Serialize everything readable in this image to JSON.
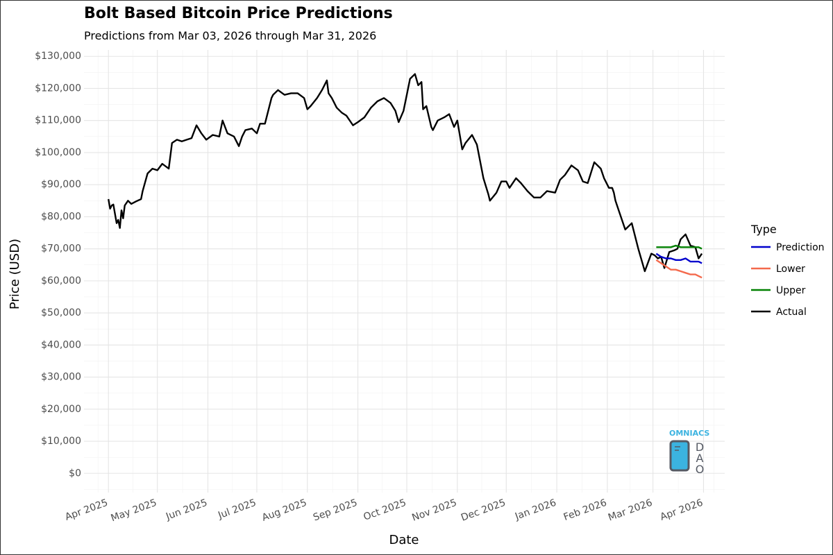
{
  "page": {
    "title": "Bolt Based Bitcoin Price Predictions",
    "subtitle": "Predictions from Mar 03, 2026 through Mar 31, 2026"
  },
  "logo": {
    "text": "OMNIACS",
    "side_text": "DAO"
  },
  "colors": {
    "Prediction": "#0000cd",
    "Lower": "#f4694c",
    "Upper": "#008000",
    "Actual": "#000000",
    "grid": "#e5e5e5"
  },
  "chart_data": {
    "type": "line",
    "title": "Bolt Based Bitcoin Price Predictions",
    "subtitle": "Predictions from Mar 03, 2026 through Mar 31, 2026",
    "xlabel": "Date",
    "ylabel": "Price (USD)",
    "xlim": [
      "2025-03-17",
      "2026-04-14"
    ],
    "ylim": [
      -6000,
      132000
    ],
    "y_ticks": [
      0,
      10000,
      20000,
      30000,
      40000,
      50000,
      60000,
      70000,
      80000,
      90000,
      100000,
      110000,
      120000,
      130000
    ],
    "y_tick_labels": [
      "$0",
      "$10,000",
      "$20,000",
      "$30,000",
      "$40,000",
      "$50,000",
      "$60,000",
      "$70,000",
      "$80,000",
      "$90,000",
      "$100,000",
      "$110,000",
      "$120,000",
      "$130,000"
    ],
    "x_ticks": [
      "2025-04-01",
      "2025-05-01",
      "2025-06-01",
      "2025-07-01",
      "2025-08-01",
      "2025-09-01",
      "2025-10-01",
      "2025-11-01",
      "2025-12-01",
      "2026-01-01",
      "2026-02-01",
      "2026-03-01",
      "2026-04-01"
    ],
    "x_tick_labels": [
      "Apr 2025",
      "May 2025",
      "Jun 2025",
      "Jul 2025",
      "Aug 2025",
      "Sep 2025",
      "Oct 2025",
      "Nov 2025",
      "Dec 2025",
      "Jan 2026",
      "Feb 2026",
      "Mar 2026",
      "Apr 2026"
    ],
    "grid": true,
    "legend": {
      "title": "Type",
      "position": "right",
      "entries": [
        "Prediction",
        "Lower",
        "Upper",
        "Actual"
      ]
    },
    "series": [
      {
        "name": "Actual",
        "x": [
          "2025-04-01",
          "2025-04-02",
          "2025-04-03",
          "2025-04-04",
          "2025-04-06",
          "2025-04-07",
          "2025-04-08",
          "2025-04-09",
          "2025-04-10",
          "2025-04-11",
          "2025-04-13",
          "2025-04-15",
          "2025-04-18",
          "2025-04-21",
          "2025-04-22",
          "2025-04-25",
          "2025-04-28",
          "2025-05-01",
          "2025-05-04",
          "2025-05-08",
          "2025-05-10",
          "2025-05-13",
          "2025-05-16",
          "2025-05-19",
          "2025-05-22",
          "2025-05-25",
          "2025-05-28",
          "2025-05-31",
          "2025-06-04",
          "2025-06-08",
          "2025-06-10",
          "2025-06-13",
          "2025-06-17",
          "2025-06-20",
          "2025-06-22",
          "2025-06-24",
          "2025-06-28",
          "2025-07-01",
          "2025-07-03",
          "2025-07-06",
          "2025-07-10",
          "2025-07-11",
          "2025-07-14",
          "2025-07-18",
          "2025-07-22",
          "2025-07-26",
          "2025-07-30",
          "2025-08-01",
          "2025-08-03",
          "2025-08-07",
          "2025-08-10",
          "2025-08-13",
          "2025-08-14",
          "2025-08-16",
          "2025-08-19",
          "2025-08-22",
          "2025-08-25",
          "2025-08-29",
          "2025-09-01",
          "2025-09-05",
          "2025-09-09",
          "2025-09-13",
          "2025-09-17",
          "2025-09-21",
          "2025-09-24",
          "2025-09-26",
          "2025-09-29",
          "2025-10-01",
          "2025-10-03",
          "2025-10-06",
          "2025-10-08",
          "2025-10-10",
          "2025-10-11",
          "2025-10-13",
          "2025-10-16",
          "2025-10-17",
          "2025-10-20",
          "2025-10-24",
          "2025-10-27",
          "2025-10-30",
          "2025-11-01",
          "2025-11-04",
          "2025-11-06",
          "2025-11-10",
          "2025-11-13",
          "2025-11-17",
          "2025-11-20",
          "2025-11-21",
          "2025-11-25",
          "2025-11-28",
          "2025-12-01",
          "2025-12-03",
          "2025-12-07",
          "2025-12-10",
          "2025-12-14",
          "2025-12-18",
          "2025-12-22",
          "2025-12-26",
          "2025-12-31",
          "2026-01-03",
          "2026-01-06",
          "2026-01-10",
          "2026-01-14",
          "2026-01-17",
          "2026-01-20",
          "2026-01-24",
          "2026-01-28",
          "2026-01-30",
          "2026-02-02",
          "2026-02-04",
          "2026-02-05",
          "2026-02-06",
          "2026-02-08",
          "2026-02-12",
          "2026-02-16",
          "2026-02-20",
          "2026-02-24",
          "2026-02-28",
          "2026-03-02",
          "2026-03-04",
          "2026-03-06",
          "2026-03-08",
          "2026-03-11",
          "2026-03-14",
          "2026-03-16",
          "2026-03-18",
          "2026-03-21",
          "2026-03-24",
          "2026-03-27",
          "2026-03-29",
          "2026-03-31"
        ],
        "values": [
          85500,
          82500,
          83500,
          83800,
          78000,
          79000,
          76500,
          82000,
          79500,
          83500,
          85000,
          84000,
          84800,
          85500,
          88000,
          93500,
          95000,
          94500,
          96500,
          95000,
          103000,
          104000,
          103500,
          104000,
          104500,
          108500,
          106000,
          104000,
          105500,
          105000,
          110000,
          106000,
          105000,
          102000,
          105000,
          107000,
          107500,
          106000,
          109000,
          109000,
          117000,
          118000,
          119500,
          118000,
          118500,
          118500,
          117000,
          113500,
          114500,
          117000,
          119500,
          122500,
          118500,
          117000,
          114000,
          112500,
          111500,
          108500,
          109500,
          111000,
          114000,
          116000,
          117000,
          115500,
          113000,
          109500,
          113000,
          118000,
          123000,
          124500,
          121000,
          122000,
          113500,
          114500,
          108000,
          107000,
          110000,
          111000,
          112000,
          108000,
          110000,
          101000,
          103000,
          105500,
          102500,
          92000,
          87000,
          85000,
          87500,
          91000,
          91000,
          89000,
          92000,
          90500,
          88000,
          86000,
          86000,
          88000,
          87500,
          91500,
          93000,
          96000,
          94500,
          91000,
          90500,
          97000,
          95000,
          92000,
          89000,
          89000,
          87500,
          85000,
          82000,
          76000,
          78000,
          70000,
          63000,
          68500,
          68000,
          67000,
          67500,
          64000,
          69000,
          69500,
          70000,
          73000,
          74500,
          71000,
          70500,
          67000,
          68500
        ],
        "color": "#000000"
      },
      {
        "name": "Prediction",
        "x": [
          "2026-03-03",
          "2026-03-06",
          "2026-03-09",
          "2026-03-12",
          "2026-03-15",
          "2026-03-18",
          "2026-03-21",
          "2026-03-24",
          "2026-03-27",
          "2026-03-29",
          "2026-03-31"
        ],
        "values": [
          68500,
          67500,
          67000,
          67000,
          66500,
          66500,
          67000,
          66000,
          66000,
          66000,
          65500
        ],
        "color": "#0000cd"
      },
      {
        "name": "Lower",
        "x": [
          "2026-03-03",
          "2026-03-06",
          "2026-03-09",
          "2026-03-12",
          "2026-03-15",
          "2026-03-18",
          "2026-03-21",
          "2026-03-24",
          "2026-03-27",
          "2026-03-29",
          "2026-03-31"
        ],
        "values": [
          66500,
          65500,
          64500,
          63500,
          63500,
          63000,
          62500,
          62000,
          62000,
          61500,
          61000
        ],
        "color": "#f4694c"
      },
      {
        "name": "Upper",
        "x": [
          "2026-03-03",
          "2026-03-06",
          "2026-03-09",
          "2026-03-12",
          "2026-03-15",
          "2026-03-18",
          "2026-03-21",
          "2026-03-24",
          "2026-03-27",
          "2026-03-29",
          "2026-03-31"
        ],
        "values": [
          70500,
          70500,
          70500,
          70500,
          71000,
          70500,
          70500,
          70500,
          70500,
          70500,
          70000
        ],
        "color": "#008000"
      }
    ]
  }
}
